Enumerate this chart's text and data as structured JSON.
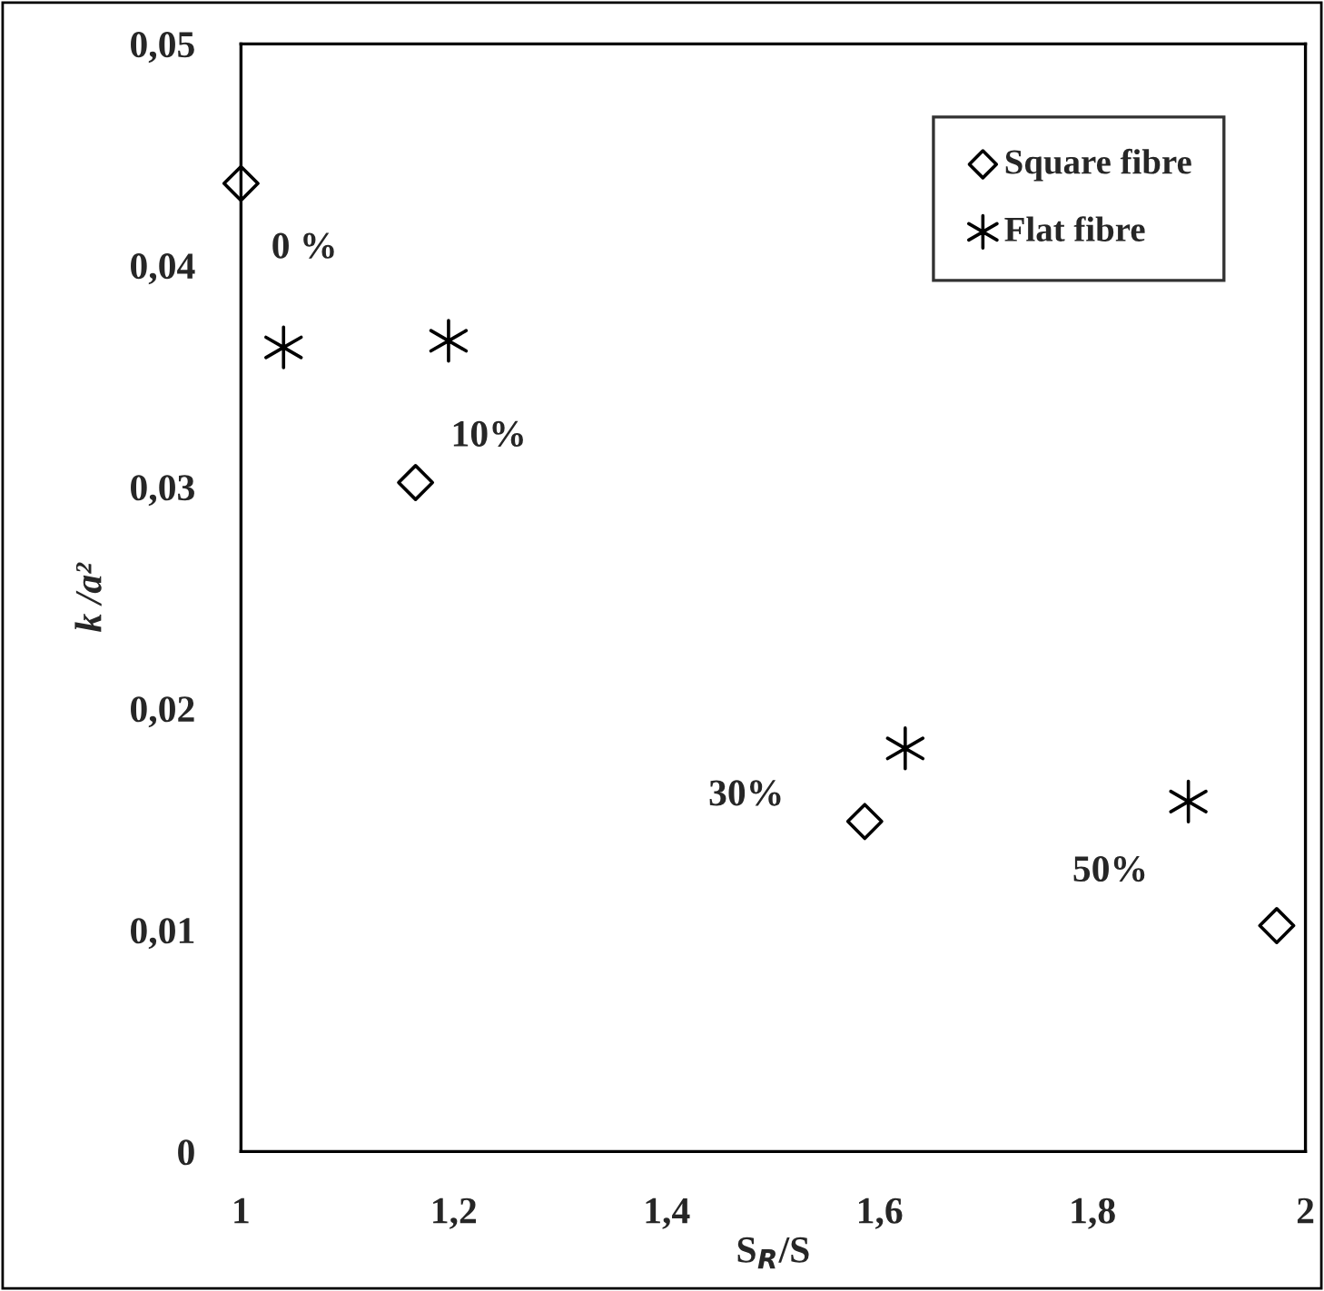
{
  "chart_data": {
    "type": "scatter",
    "xlabel": "S$_{R}$/S",
    "ylabel": "k /a²",
    "xlim": [
      1,
      2
    ],
    "xticks": [
      {
        "value": 1,
        "label": "1"
      },
      {
        "value": 1.2,
        "label": "1,2"
      },
      {
        "value": 1.4,
        "label": "1,4"
      },
      {
        "value": 1.6,
        "label": "1,6"
      },
      {
        "value": 1.8,
        "label": "1,8"
      },
      {
        "value": 2,
        "label": "2"
      }
    ],
    "ylim": [
      0,
      0.05
    ],
    "yticks": [
      {
        "value": 0,
        "label": "0"
      },
      {
        "value": 0.01,
        "label": "0,01"
      },
      {
        "value": 0.02,
        "label": "0,02"
      },
      {
        "value": 0.03,
        "label": "0,03"
      },
      {
        "value": 0.04,
        "label": "0,04"
      },
      {
        "value": 0.05,
        "label": "0,05"
      }
    ],
    "series": [
      {
        "name": "Square fibre",
        "color": "#000000",
        "marker": "diamond",
        "x": [
          1.0,
          1.164,
          1.586,
          1.973
        ],
        "values": [
          0.0437,
          0.0302,
          0.0149,
          0.0102
        ]
      },
      {
        "name": "Flat fibre",
        "color": "#000000",
        "marker": "cross",
        "x": [
          1.04,
          1.195,
          1.624,
          1.89
        ],
        "values": [
          0.0363,
          0.0366,
          0.0182,
          0.0158
        ]
      }
    ],
    "annotations": [
      {
        "text": "0 %",
        "x": 1.0,
        "y": 0.0437
      },
      {
        "text": "10%",
        "x": 1.164,
        "y": 0.0302
      },
      {
        "text": "30%",
        "x": 1.586,
        "y": 0.0149
      },
      {
        "text": "50%",
        "x": 1.89,
        "y": 0.0158
      }
    ],
    "legend": "top right",
    "grid": false
  }
}
